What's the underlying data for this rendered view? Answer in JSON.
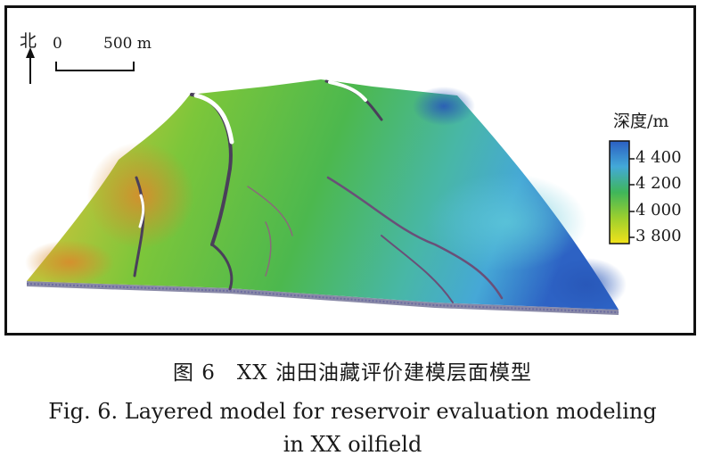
{
  "figure": {
    "north_label": "北",
    "scale_bar": {
      "start_label": "0",
      "end_label": "500 m"
    },
    "legend": {
      "title": "深度/m",
      "ticks": [
        "4 400",
        "4 200",
        "4 000",
        "3 800"
      ],
      "colors": [
        "#2b5fc2",
        "#43a9d8",
        "#3fb65a",
        "#9ccf2e",
        "#f2e21a"
      ]
    }
  },
  "caption": {
    "chinese": "图 6　XX 油田油藏评价建模层面模型",
    "english_line1": "Fig. 6.  Layered model for reservoir evaluation modeling",
    "english_line2": "in XX oilfield"
  }
}
